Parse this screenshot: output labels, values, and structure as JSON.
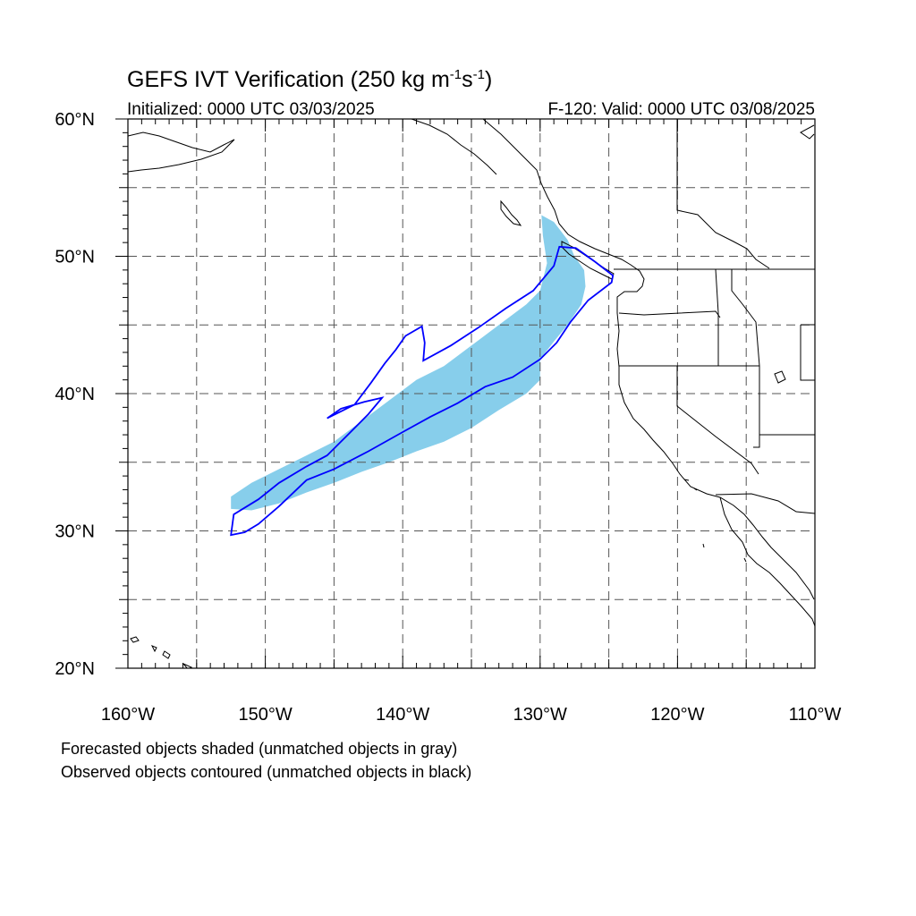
{
  "title": {
    "main": "GEFS IVT Verification (250 kg m",
    "sup1": "-1",
    "mid": "s",
    "sup2": "-1",
    "end": ")"
  },
  "subtitle_left": "Initialized: 0000 UTC 03/03/2025",
  "subtitle_right": "F-120: Valid: 0000 UTC 03/08/2025",
  "notes": [
    "Forecasted objects shaded (unmatched objects in gray)",
    "Observed objects contoured (unmatched objects in black)"
  ],
  "map": {
    "lon_range": [
      -160,
      -110
    ],
    "lat_range": [
      20,
      60
    ],
    "lon_labels": [
      "160°W",
      "150°W",
      "140°W",
      "130°W",
      "120°W",
      "110°W"
    ],
    "lat_labels": [
      "20°N",
      "30°N",
      "40°N",
      "50°N",
      "60°N"
    ],
    "gridlines": "dashed, every 5 degrees",
    "colors": {
      "forecast_shading": "#87ceeb",
      "observed_contour": "#0000ff",
      "coastline": "#000000",
      "grid": "#555555"
    },
    "forecast_object": {
      "label": "forecast IVT object (shaded)",
      "outline_lonlat": [
        [
          -152.5,
          32.5
        ],
        [
          -151,
          33.5
        ],
        [
          -149,
          34.5
        ],
        [
          -147,
          35.5
        ],
        [
          -145,
          36.5
        ],
        [
          -143,
          38
        ],
        [
          -141,
          39.5
        ],
        [
          -139,
          41
        ],
        [
          -137,
          42
        ],
        [
          -135,
          43.5
        ],
        [
          -133,
          45
        ],
        [
          -131,
          46.5
        ],
        [
          -130,
          47.5
        ],
        [
          -129.5,
          49.5
        ],
        [
          -129.8,
          51.5
        ],
        [
          -129.9,
          53
        ],
        [
          -129,
          52.5
        ],
        [
          -128,
          51.2
        ],
        [
          -127.5,
          50
        ],
        [
          -126.8,
          49
        ],
        [
          -126.7,
          47.8
        ],
        [
          -127,
          46.5
        ],
        [
          -128,
          45
        ],
        [
          -129,
          43.8
        ],
        [
          -130,
          42.5
        ],
        [
          -130,
          41
        ],
        [
          -131,
          40
        ],
        [
          -133,
          38.8
        ],
        [
          -135,
          37.5
        ],
        [
          -137,
          36.5
        ],
        [
          -139,
          35.8
        ],
        [
          -141,
          35
        ],
        [
          -143,
          34.3
        ],
        [
          -145,
          33.5
        ],
        [
          -147,
          32.8
        ],
        [
          -149,
          32
        ],
        [
          -151,
          31.5
        ],
        [
          -152.5,
          31.6
        ]
      ]
    },
    "observed_object": {
      "label": "observed IVT object (contoured)",
      "outline_lonlat": [
        [
          -152.5,
          29.7
        ],
        [
          -152.3,
          31.2
        ],
        [
          -150.5,
          32.3
        ],
        [
          -149,
          33.5
        ],
        [
          -147,
          34.7
        ],
        [
          -145.5,
          35.5
        ],
        [
          -144,
          37
        ],
        [
          -142.5,
          38.5
        ],
        [
          -141.5,
          39.7
        ],
        [
          -142.8,
          39.4
        ],
        [
          -144.5,
          38.9
        ],
        [
          -145.5,
          38.2
        ],
        [
          -143.5,
          39.2
        ],
        [
          -142.3,
          40.8
        ],
        [
          -141.3,
          42.2
        ],
        [
          -140.5,
          43.2
        ],
        [
          -139.8,
          44.2
        ],
        [
          -138.6,
          44.9
        ],
        [
          -138.4,
          43.7
        ],
        [
          -138.5,
          42.4
        ],
        [
          -136.5,
          43.5
        ],
        [
          -134.5,
          44.8
        ],
        [
          -132.5,
          46.2
        ],
        [
          -130.5,
          47.5
        ],
        [
          -129,
          49.3
        ],
        [
          -128.6,
          50.7
        ],
        [
          -127.4,
          50.6
        ],
        [
          -126,
          49.6
        ],
        [
          -124.7,
          48.6
        ],
        [
          -124.8,
          48.1
        ],
        [
          -126.5,
          46.8
        ],
        [
          -127.8,
          45.2
        ],
        [
          -128.8,
          43.7
        ],
        [
          -130,
          42.5
        ],
        [
          -132,
          41.2
        ],
        [
          -134,
          40.5
        ],
        [
          -136,
          39.3
        ],
        [
          -138,
          38.3
        ],
        [
          -140,
          37.2
        ],
        [
          -142.5,
          35.8
        ],
        [
          -145,
          34.5
        ],
        [
          -147,
          33.7
        ],
        [
          -149,
          31.8
        ],
        [
          -150.5,
          30.5
        ],
        [
          -151.5,
          29.9
        ]
      ]
    }
  }
}
